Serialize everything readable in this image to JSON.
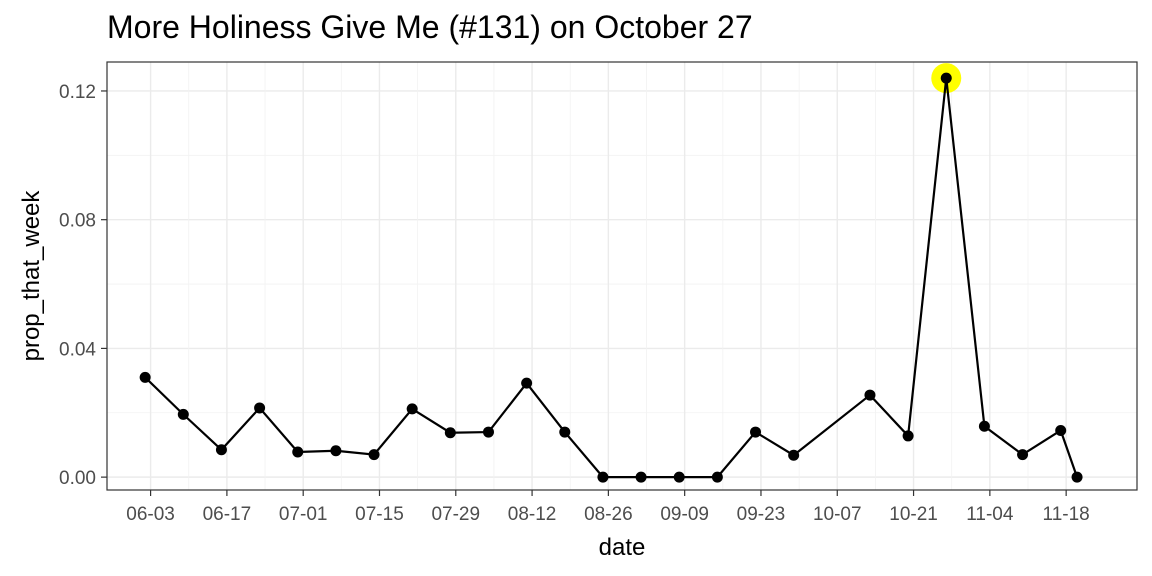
{
  "chart_data": {
    "type": "line",
    "title": "More Holiness Give Me (#131) on October 27",
    "xlabel": "date",
    "ylabel": "prop_that_week",
    "x_ticks": [
      "06-03",
      "06-17",
      "07-01",
      "07-15",
      "07-29",
      "08-12",
      "08-26",
      "09-09",
      "09-23",
      "10-07",
      "10-21",
      "11-04",
      "11-18"
    ],
    "y_ticks": [
      "0.00",
      "0.04",
      "0.08",
      "0.12"
    ],
    "ylim": [
      -0.004,
      0.129
    ],
    "xlim": [
      "05-26",
      "12-01"
    ],
    "grid": true,
    "highlight": {
      "x": "10-27",
      "y": 0.124,
      "color": "#ffff00"
    },
    "series": [
      {
        "color": "#000000",
        "x": [
          "06-02",
          "06-09",
          "06-16",
          "06-23",
          "06-30",
          "07-07",
          "07-14",
          "07-21",
          "07-28",
          "08-04",
          "08-11",
          "08-18",
          "08-25",
          "09-01",
          "09-08",
          "09-15",
          "09-22",
          "09-29",
          "10-13",
          "10-20",
          "10-27",
          "11-03",
          "11-10",
          "11-17",
          "11-20"
        ],
        "values": [
          0.031,
          0.0195,
          0.0085,
          0.0215,
          0.0078,
          0.0082,
          0.007,
          0.0212,
          0.0138,
          0.014,
          0.0292,
          0.014,
          0.0,
          0.0,
          0.0,
          0.0,
          0.014,
          0.0068,
          0.0255,
          0.0128,
          0.124,
          0.0158,
          0.007,
          0.0145,
          0.0
        ]
      }
    ]
  }
}
